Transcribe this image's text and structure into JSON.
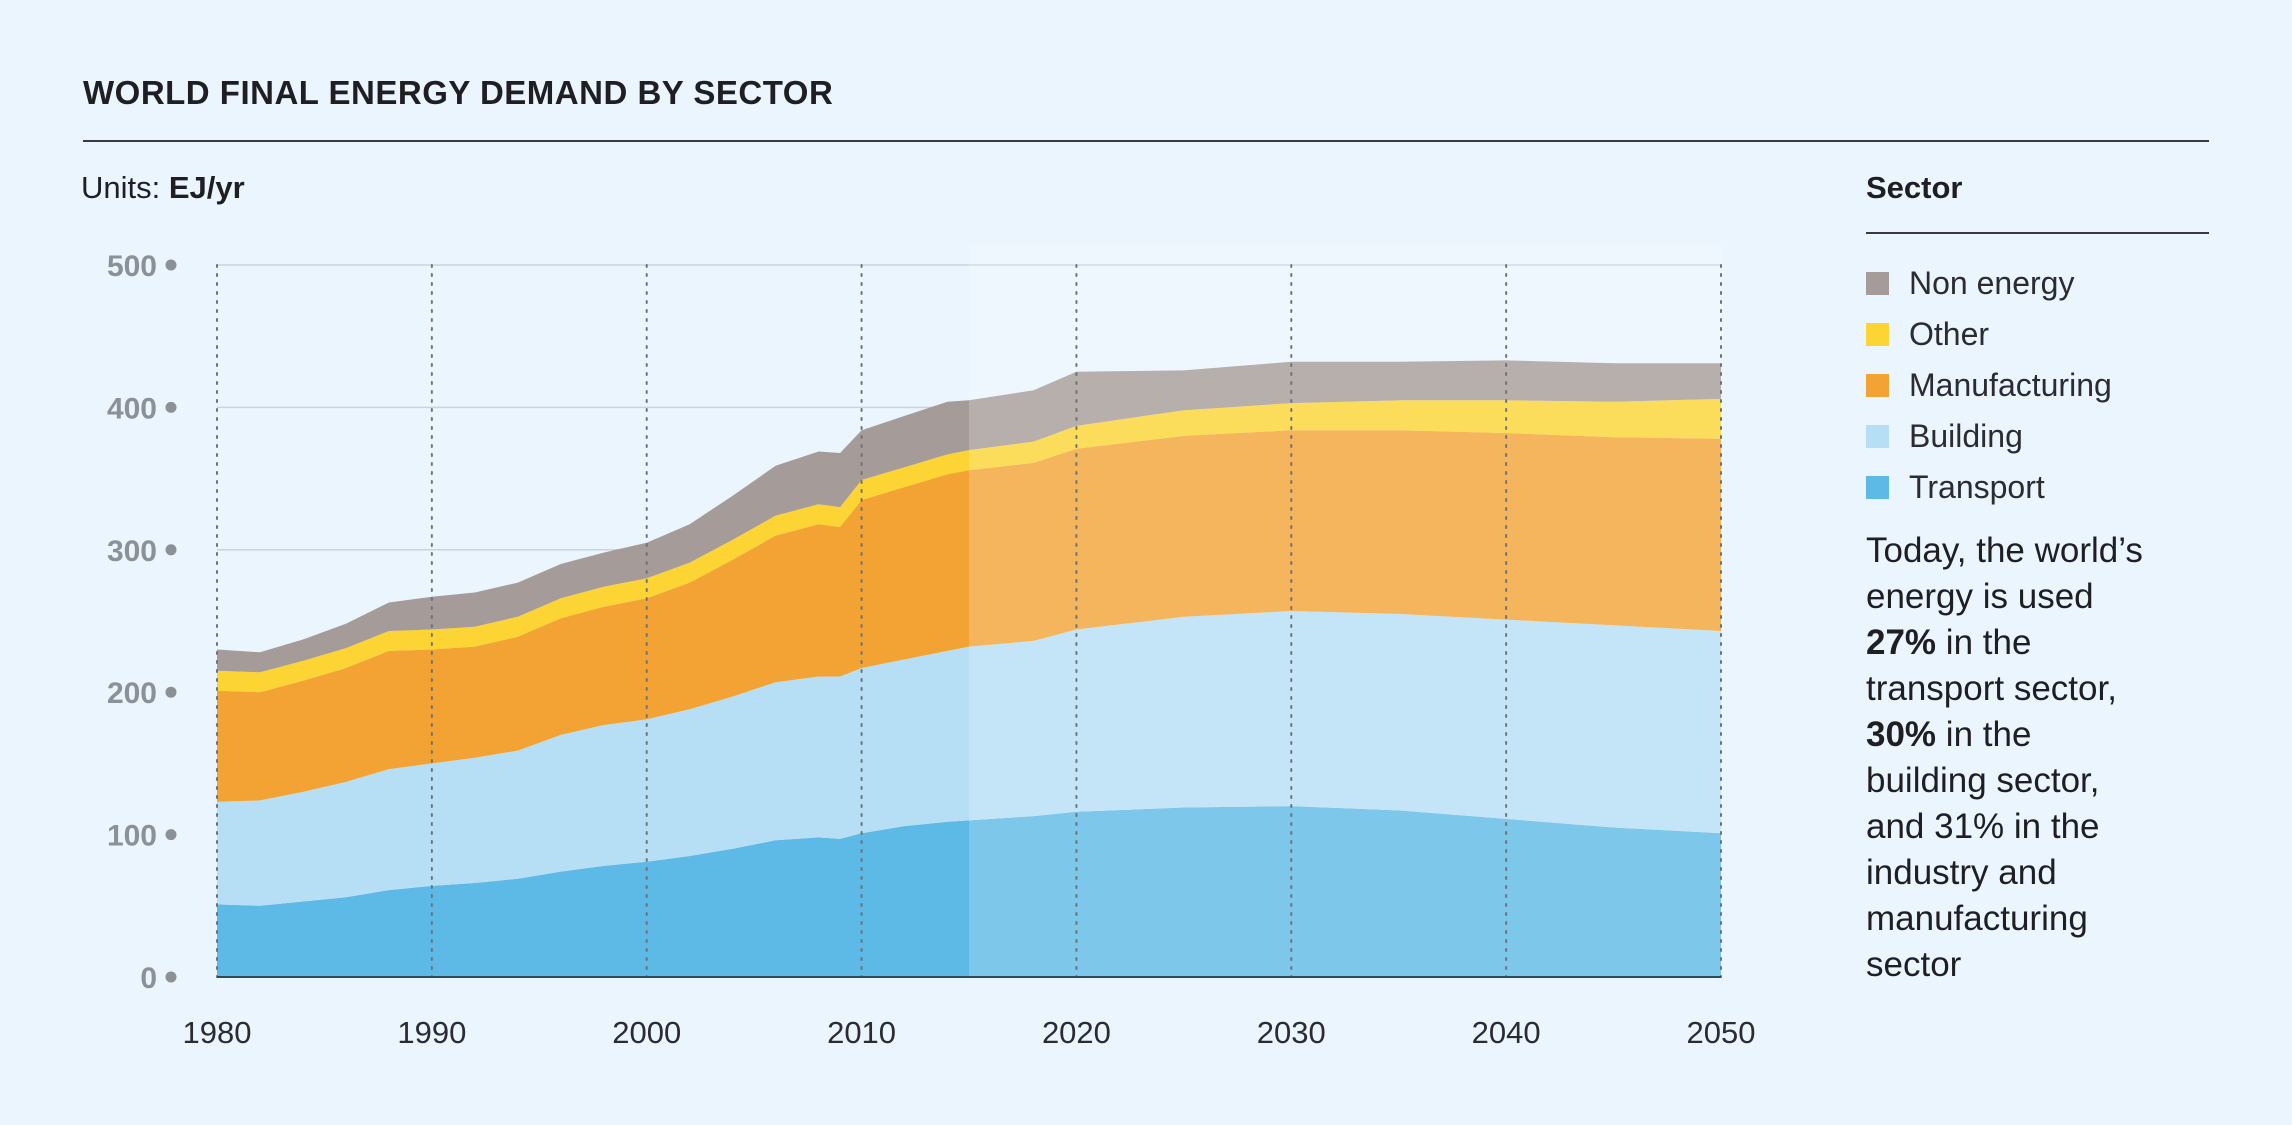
{
  "title": "WORLD FINAL ENERGY DEMAND BY SECTOR",
  "units_prefix": "Units: ",
  "units_value": "EJ/yr",
  "legend": {
    "title": "Sector",
    "items": [
      {
        "label": "Non energy",
        "color": "#a59b98"
      },
      {
        "label": "Other",
        "color": "#fcd433"
      },
      {
        "label": "Manufacturing",
        "color": "#f2a334"
      },
      {
        "label": "Building",
        "color": "#b6def5"
      },
      {
        "label": "Transport",
        "color": "#5db9e5"
      }
    ]
  },
  "note": {
    "l1": "Today, the world’s",
    "l2": "energy is used",
    "p1": "27%",
    "l3": " in the",
    "l4": "transport sector,",
    "p2": "30%",
    "l5": " in the",
    "l6": "building sector,",
    "l7": "and 31% in the",
    "l8": "industry and",
    "l9": "manufacturing",
    "l10": "sector"
  },
  "chart_data": {
    "type": "area",
    "stacked": true,
    "projection_start": 2015,
    "xlim": [
      1980,
      2050
    ],
    "ylim": [
      0,
      500
    ],
    "xticks": [
      1980,
      1990,
      2000,
      2010,
      2020,
      2030,
      2040,
      2050
    ],
    "yticks": [
      0,
      100,
      200,
      300,
      400,
      500
    ],
    "x": [
      1980,
      1982,
      1984,
      1986,
      1988,
      1990,
      1992,
      1994,
      1996,
      1998,
      2000,
      2002,
      2004,
      2006,
      2008,
      2009,
      2010,
      2012,
      2014,
      2015,
      2018,
      2020,
      2025,
      2030,
      2035,
      2040,
      2045,
      2050
    ],
    "series": [
      {
        "name": "Transport",
        "color": "#5db9e5",
        "values": [
          51,
          50,
          53,
          56,
          61,
          64,
          66,
          69,
          74,
          78,
          81,
          85,
          90,
          96,
          98,
          97,
          101,
          106,
          109,
          110,
          113,
          116,
          119,
          120,
          117,
          111,
          105,
          101
        ]
      },
      {
        "name": "Building",
        "color": "#b6def5",
        "values": [
          72,
          74,
          77,
          81,
          85,
          86,
          88,
          90,
          96,
          99,
          100,
          103,
          107,
          111,
          113,
          114,
          116,
          117,
          120,
          122,
          123,
          128,
          134,
          137,
          138,
          140,
          142,
          142
        ]
      },
      {
        "name": "Manufacturing",
        "color": "#f2a334",
        "values": [
          78,
          76,
          78,
          80,
          83,
          80,
          78,
          80,
          82,
          83,
          85,
          89,
          96,
          103,
          107,
          105,
          118,
          121,
          124,
          124,
          125,
          127,
          127,
          127,
          129,
          131,
          132,
          135
        ]
      },
      {
        "name": "Other",
        "color": "#fcd433",
        "values": [
          14,
          14,
          14,
          14,
          14,
          14,
          14,
          14,
          14,
          14,
          14,
          14,
          14,
          14,
          14,
          14,
          14,
          14,
          14,
          14,
          15,
          16,
          18,
          19,
          21,
          23,
          25,
          28
        ]
      },
      {
        "name": "Non energy",
        "color": "#a59b98",
        "values": [
          15,
          14,
          15,
          17,
          20,
          23,
          24,
          24,
          24,
          24,
          25,
          27,
          31,
          35,
          37,
          38,
          35,
          36,
          37,
          35,
          36,
          38,
          28,
          29,
          27,
          28,
          27,
          25
        ]
      }
    ]
  }
}
